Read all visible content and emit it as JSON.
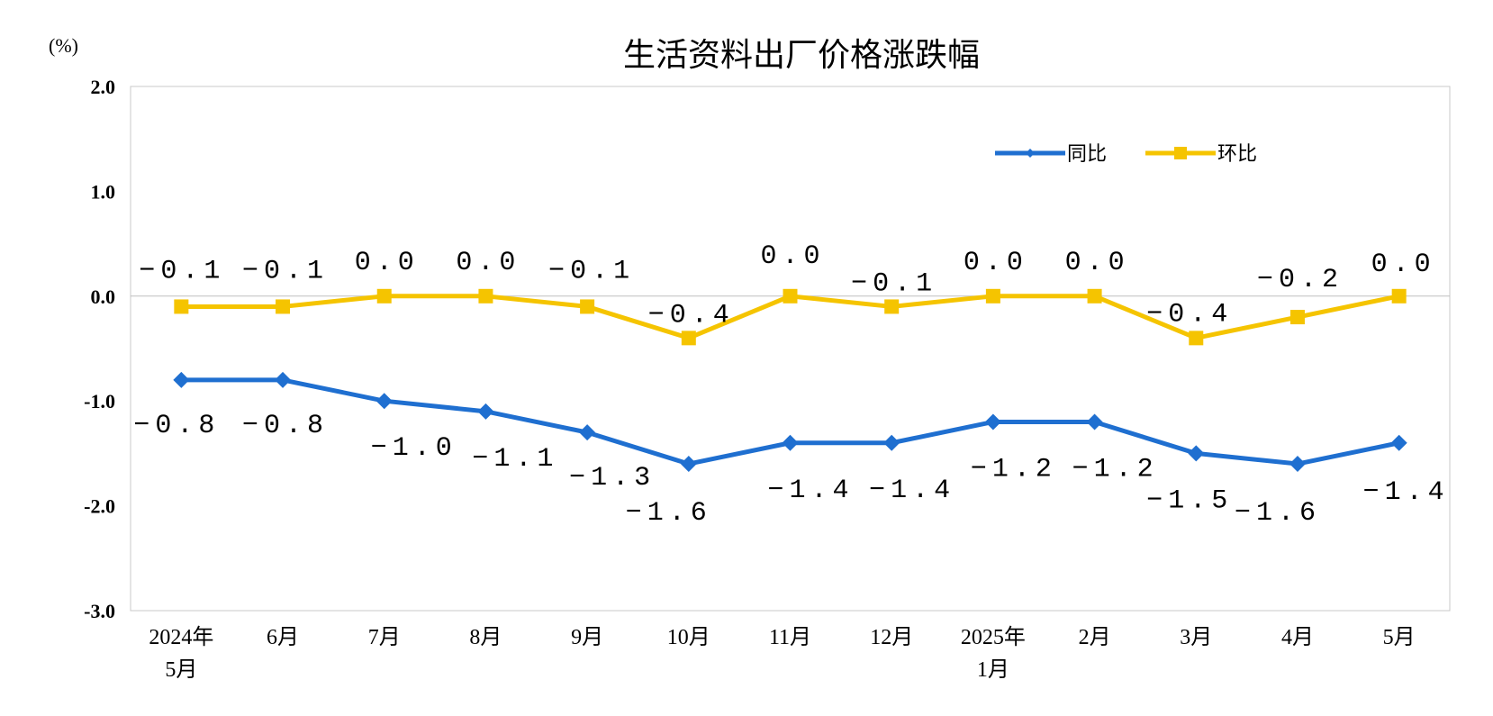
{
  "chart_data": {
    "type": "line",
    "title": "生活资料出厂价格涨跌幅",
    "unit": "(%)",
    "categories": [
      [
        "2024年",
        "5月"
      ],
      [
        "6月"
      ],
      [
        "7月"
      ],
      [
        "8月"
      ],
      [
        "9月"
      ],
      [
        "10月"
      ],
      [
        "11月"
      ],
      [
        "12月"
      ],
      [
        "2025年",
        "1月"
      ],
      [
        "2月"
      ],
      [
        "3月"
      ],
      [
        "4月"
      ],
      [
        "5月"
      ]
    ],
    "ylim": [
      -3.0,
      2.0
    ],
    "yticks": [
      "2.0",
      "1.0",
      "0.0",
      "-1.0",
      "-2.0",
      "-3.0"
    ],
    "grid": false,
    "legend_position": "top-right",
    "series": [
      {
        "name": "同比",
        "color": "#1F6FD0",
        "marker": "diamond",
        "values": [
          -0.8,
          -0.8,
          -1.0,
          -1.1,
          -1.3,
          -1.6,
          -1.4,
          -1.4,
          -1.2,
          -1.2,
          -1.5,
          -1.6,
          -1.4
        ],
        "labels": [
          "-0.8",
          "-0.8",
          "-1.0",
          "-1.1",
          "-1.3",
          "-1.6",
          "-1.4",
          "-1.4",
          "-1.2",
          "-1.2",
          "-1.5",
          "-1.6",
          "-1.4"
        ]
      },
      {
        "name": "环比",
        "color": "#F5C400",
        "marker": "square",
        "values": [
          -0.1,
          -0.1,
          0.0,
          0.0,
          -0.1,
          -0.4,
          0.0,
          -0.1,
          0.0,
          0.0,
          -0.4,
          -0.2,
          0.0
        ],
        "labels": [
          "-0.1",
          "-0.1",
          "0.0",
          "0.0",
          "-0.1",
          "-0.4",
          "0.0",
          "-0.1",
          "0.0",
          "0.0",
          "-0.4",
          "-0.2",
          "0.0"
        ]
      }
    ]
  }
}
